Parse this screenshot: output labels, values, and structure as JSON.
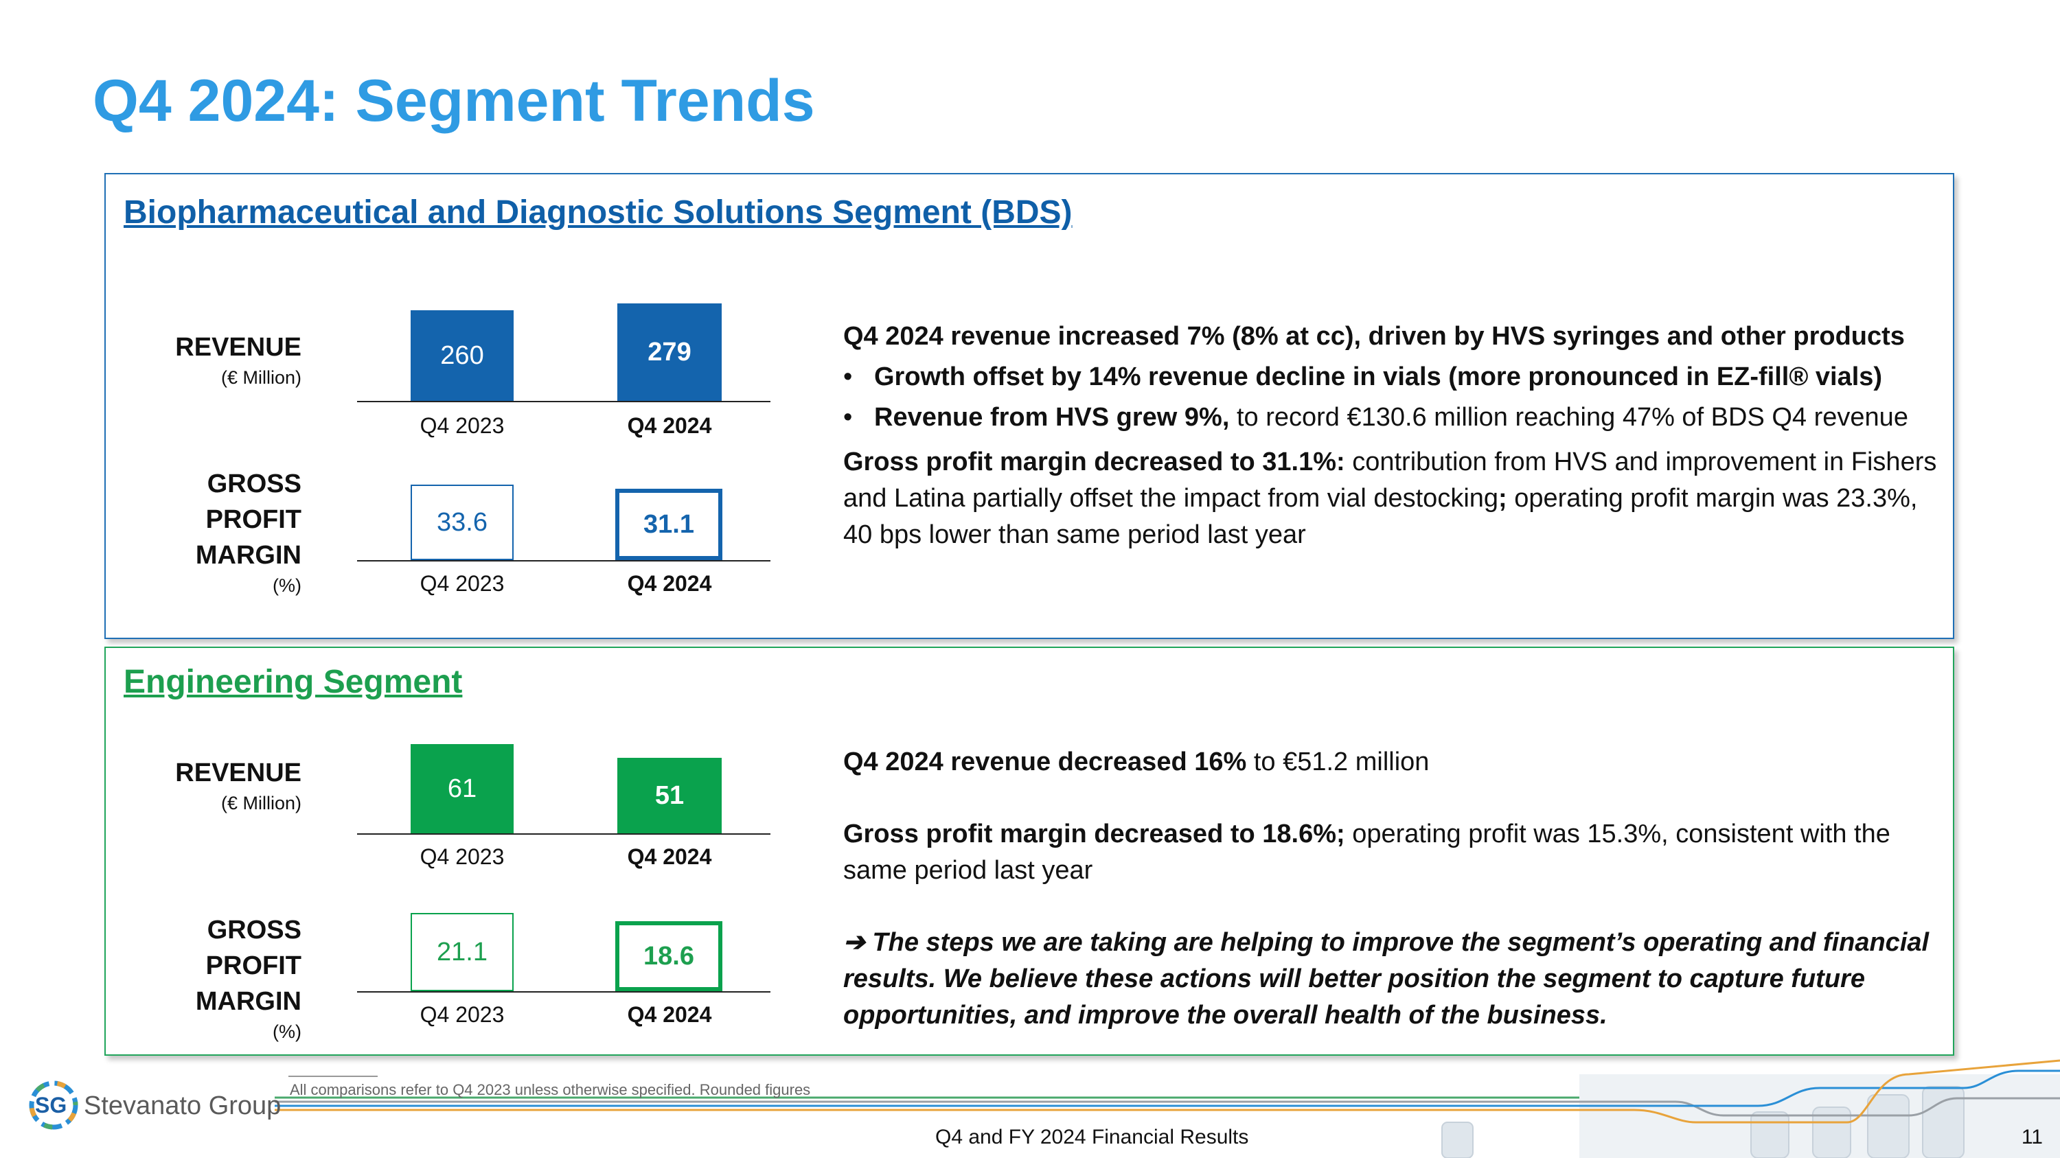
{
  "page": {
    "title": "Q4 2024: Segment Trends",
    "footnote": "All comparisons refer to Q4 2023 unless otherwise specified. Rounded figures",
    "footer_center": "Q4 and FY 2024 Financial Results",
    "page_number": "11",
    "logo_mark": "SG",
    "logo_text": "Stevanato Group"
  },
  "colors": {
    "title": "#2f9be3",
    "bds": "#0f5fa8",
    "bds_bar": "#1464ad",
    "eng": "#1d9f4f",
    "eng_bar": "#0aa24d"
  },
  "bds": {
    "heading": "Biopharmaceutical and Diagnostic Solutions Segment (BDS)",
    "revenue_label": "REVENUE",
    "revenue_unit": "(€ Million)",
    "gpm_label_1": "GROSS PROFIT",
    "gpm_label_2": "MARGIN",
    "gpm_unit": "(%)",
    "revenue": [
      {
        "category": "Q4 2023",
        "value": "260"
      },
      {
        "category": "Q4 2024",
        "value": "279"
      }
    ],
    "gpm": [
      {
        "category": "Q4 2023",
        "value": "33.6"
      },
      {
        "category": "Q4 2024",
        "value": "31.1"
      }
    ],
    "line1": "Q4 2024 revenue increased 7% (8% at cc), driven by HVS syringes and other products",
    "bullet1": "Growth offset by 14% revenue decline in vials (more pronounced in EZ-fill® vials)",
    "bullet2_bold": "Revenue from HVS grew 9%,",
    "bullet2_rest": " to record €130.6 million reaching 47% of BDS Q4 revenue",
    "para_bold": "Gross profit margin decreased to 31.1%:",
    "para_rest": " contribution from HVS and improvement in Fishers and Latina partially offset the impact from vial destocking",
    "para_semicolon": ";",
    "para_rest2": " operating profit margin was 23.3%, 40 bps lower than same period last year"
  },
  "eng": {
    "heading": "Engineering Segment",
    "revenue_label": "REVENUE",
    "revenue_unit": "(€ Million)",
    "gpm_label_1": "GROSS PROFIT",
    "gpm_label_2": "MARGIN",
    "gpm_unit": "(%)",
    "revenue": [
      {
        "category": "Q4 2023",
        "value": "61"
      },
      {
        "category": "Q4 2024",
        "value": "51"
      }
    ],
    "gpm": [
      {
        "category": "Q4 2023",
        "value": "21.1"
      },
      {
        "category": "Q4 2024",
        "value": "18.6"
      }
    ],
    "line1_bold": "Q4 2024 revenue decreased 16%",
    "line1_rest": " to €51.2 million",
    "para_bold": "Gross profit margin decreased to 18.6%;",
    "para_rest": " operating profit was 15.3%, consistent with the same period last year",
    "note_arrow": "➔",
    "note": " The steps we are taking are helping to improve the segment’s operating and financial results. We believe these actions will better position the segment to capture future opportunities, and improve the overall health of the business."
  }
}
